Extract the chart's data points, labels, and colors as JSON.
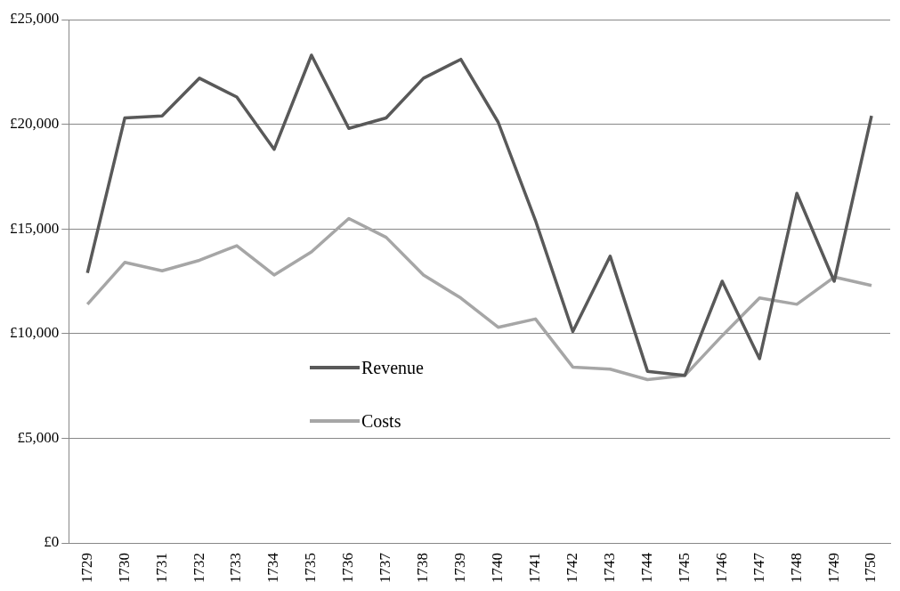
{
  "chart_data": {
    "type": "line",
    "categories": [
      "1729",
      "1730",
      "1731",
      "1732",
      "1733",
      "1734",
      "1735",
      "1736",
      "1737",
      "1738",
      "1739",
      "1740",
      "1741",
      "1742",
      "1743",
      "1744",
      "1745",
      "1746",
      "1747",
      "1748",
      "1749",
      "1750"
    ],
    "series": [
      {
        "name": "Revenue",
        "color": "#595959",
        "values": [
          12900,
          20300,
          20400,
          22200,
          21300,
          18800,
          23300,
          19800,
          20300,
          22200,
          23100,
          20100,
          15400,
          10100,
          13700,
          8200,
          8000,
          12500,
          8800,
          16700,
          12500,
          20400
        ]
      },
      {
        "name": "Costs",
        "color": "#a6a6a6",
        "values": [
          11400,
          13400,
          13000,
          13500,
          14200,
          12800,
          13900,
          15500,
          14600,
          12800,
          11700,
          10300,
          10700,
          8400,
          8300,
          7800,
          8000,
          9900,
          11700,
          11400,
          12700,
          12300
        ]
      }
    ],
    "ylim": [
      0,
      25000
    ],
    "yticks": [
      {
        "value": 0,
        "label": "£0"
      },
      {
        "value": 5000,
        "label": "£5,000"
      },
      {
        "value": 10000,
        "label": "£10,000"
      },
      {
        "value": 15000,
        "label": "£15,000"
      },
      {
        "value": 20000,
        "label": "£20,000"
      },
      {
        "value": 25000,
        "label": "£25,000"
      }
    ],
    "grid": "y",
    "legend": "center",
    "marker": "none",
    "line_style": "solid"
  }
}
